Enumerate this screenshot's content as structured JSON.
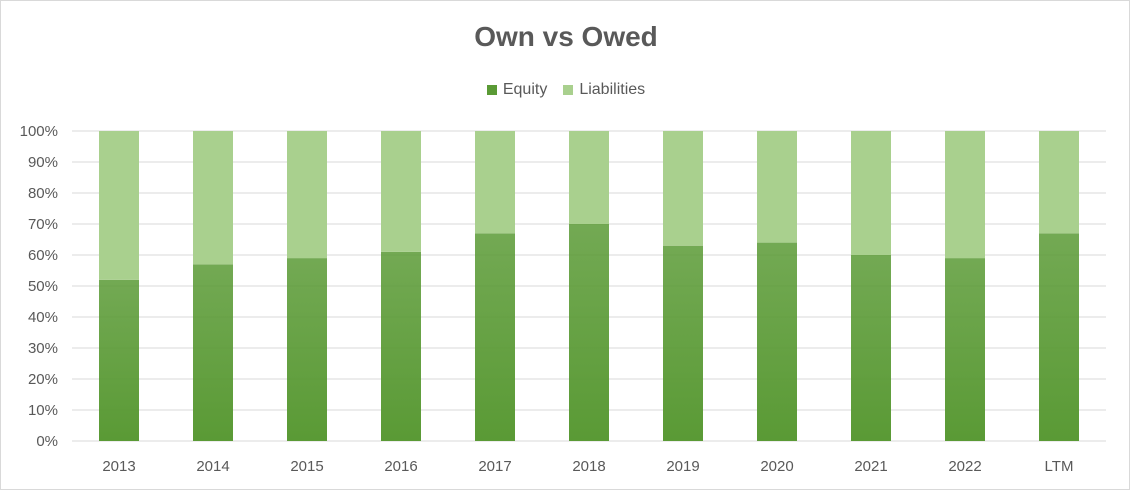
{
  "chart_data": {
    "type": "bar",
    "stacked": true,
    "title": "Own vs Owed",
    "categories": [
      "2013",
      "2014",
      "2015",
      "2016",
      "2017",
      "2018",
      "2019",
      "2020",
      "2021",
      "2022",
      "LTM"
    ],
    "series": [
      {
        "name": "Equity",
        "values": [
          52,
          57,
          59,
          61,
          67,
          70,
          63,
          64,
          60,
          59,
          67
        ],
        "color": "#5a9a35"
      },
      {
        "name": "Liabilities",
        "values": [
          48,
          43,
          41,
          39,
          33,
          30,
          37,
          36,
          40,
          41,
          33
        ],
        "color": "#a9d08e"
      }
    ],
    "ylim": [
      0,
      100
    ],
    "yticks": [
      "0%",
      "10%",
      "20%",
      "30%",
      "40%",
      "50%",
      "60%",
      "70%",
      "80%",
      "90%",
      "100%"
    ],
    "xlabel": "",
    "ylabel": "",
    "grid": true,
    "legend_position": "top"
  }
}
